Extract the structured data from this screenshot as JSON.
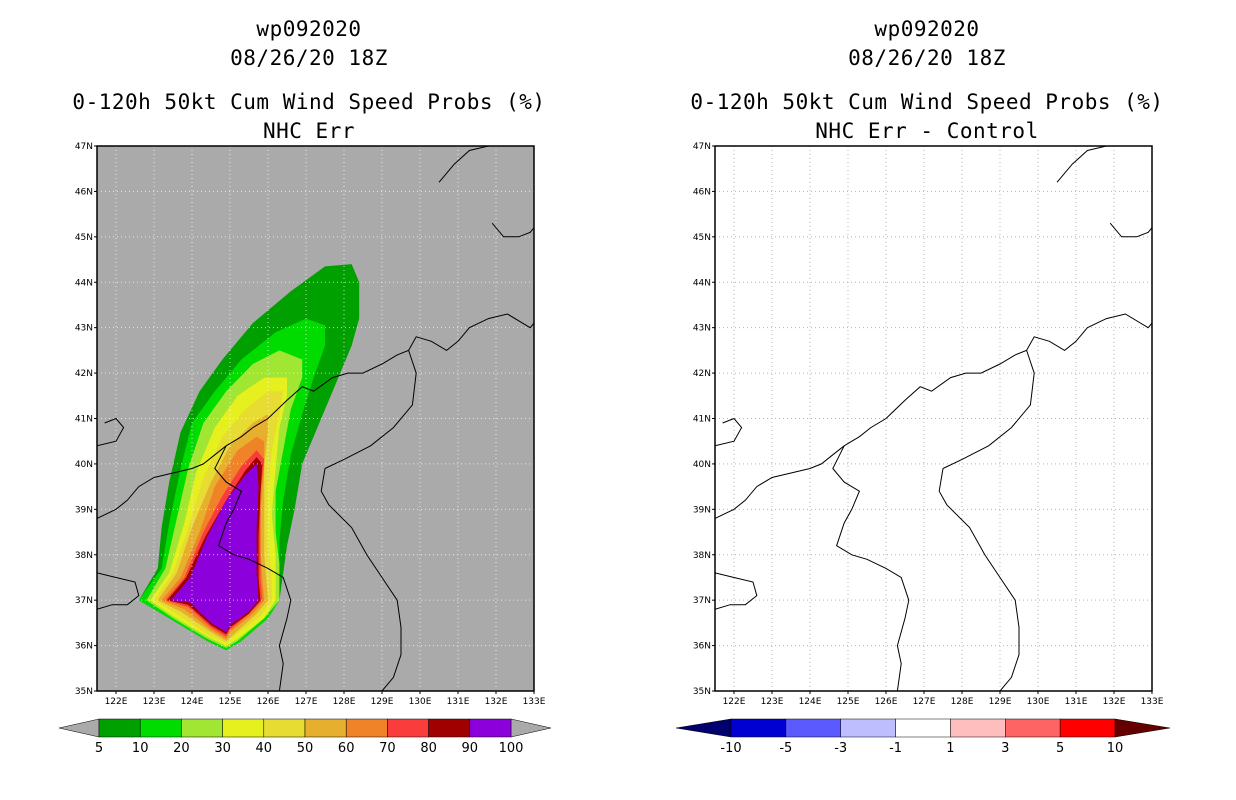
{
  "left_panel": {
    "title_line1": "wp092020",
    "title_line2": "08/26/20 18Z",
    "title_line3": "0-120h 50kt Cum Wind Speed Probs (%)",
    "title_line4": "NHC Err",
    "background_color": "#aaaaaa",
    "colorbar": {
      "labels": [
        "5",
        "10",
        "20",
        "30",
        "40",
        "50",
        "60",
        "70",
        "80",
        "90",
        "100"
      ],
      "colors": [
        "#00a000",
        "#00dc00",
        "#a0e632",
        "#e6f01e",
        "#e6dc32",
        "#e6af2d",
        "#f08228",
        "#fa3c3c",
        "#a00000",
        "#8c00dc"
      ],
      "under_color": "#aaaaaa",
      "over_color": "#aaaaaa"
    }
  },
  "right_panel": {
    "title_line1": "wp092020",
    "title_line2": "08/26/20 18Z",
    "title_line3": "0-120h 50kt Cum Wind Speed Probs (%)",
    "title_line4": "NHC Err - Control",
    "background_color": "#ffffff",
    "colorbar": {
      "labels": [
        "-10",
        "-5",
        "-3",
        "-1",
        "1",
        "3",
        "5",
        "10"
      ],
      "colors": [
        "#0000d2",
        "#5a5aff",
        "#bebeff",
        "#ffffff",
        "#ffbebe",
        "#ff6464",
        "#ff0000"
      ],
      "under_color": "#00006e",
      "over_color": "#640000"
    }
  },
  "map_axes": {
    "lon_labels": [
      "122E",
      "123E",
      "124E",
      "125E",
      "126E",
      "127E",
      "128E",
      "129E",
      "130E",
      "131E",
      "132E",
      "133E"
    ],
    "lat_labels": [
      "35N",
      "36N",
      "37N",
      "38N",
      "39N",
      "40N",
      "41N",
      "42N",
      "43N",
      "44N",
      "45N",
      "46N",
      "47N"
    ],
    "lon_range": [
      121.5,
      133
    ],
    "lat_range": [
      35,
      47
    ]
  },
  "probability_contours_deg": [
    {
      "level": "5",
      "color": "#00a000",
      "polygon": [
        [
          122.6,
          37.0
        ],
        [
          123.1,
          37.7
        ],
        [
          123.2,
          38.6
        ],
        [
          123.4,
          39.6
        ],
        [
          123.7,
          40.7
        ],
        [
          124.2,
          41.6
        ],
        [
          124.8,
          42.3
        ],
        [
          125.6,
          43.1
        ],
        [
          126.6,
          43.8
        ],
        [
          127.5,
          44.35
        ],
        [
          128.2,
          44.4
        ],
        [
          128.4,
          44.0
        ],
        [
          128.4,
          43.2
        ],
        [
          128.2,
          42.6
        ],
        [
          127.8,
          41.8
        ],
        [
          127.4,
          41.0
        ],
        [
          126.9,
          40.0
        ],
        [
          126.7,
          39.0
        ],
        [
          126.5,
          38.2
        ],
        [
          126.4,
          37.6
        ],
        [
          126.3,
          37.0
        ],
        [
          126.0,
          36.6
        ],
        [
          125.3,
          36.1
        ],
        [
          124.9,
          35.9
        ],
        [
          124.4,
          36.1
        ],
        [
          123.4,
          36.6
        ]
      ]
    },
    {
      "level": "10",
      "color": "#00dc00",
      "polygon": [
        [
          122.6,
          37.0
        ],
        [
          123.2,
          37.7
        ],
        [
          123.4,
          38.7
        ],
        [
          123.7,
          39.9
        ],
        [
          124.0,
          40.9
        ],
        [
          124.6,
          41.6
        ],
        [
          125.3,
          42.3
        ],
        [
          126.2,
          42.9
        ],
        [
          127.0,
          43.2
        ],
        [
          127.5,
          43.05
        ],
        [
          127.5,
          42.6
        ],
        [
          127.2,
          41.9
        ],
        [
          126.9,
          41.1
        ],
        [
          126.6,
          40.2
        ],
        [
          126.4,
          39.2
        ],
        [
          126.3,
          38.3
        ],
        [
          126.3,
          37.7
        ],
        [
          126.3,
          37.0
        ],
        [
          126.0,
          36.6
        ],
        [
          125.3,
          36.1
        ],
        [
          124.9,
          35.9
        ],
        [
          124.4,
          36.1
        ],
        [
          123.4,
          36.6
        ]
      ]
    },
    {
      "level": "20",
      "color": "#a0e632",
      "polygon": [
        [
          122.8,
          37.0
        ],
        [
          123.3,
          37.7
        ],
        [
          123.6,
          38.8
        ],
        [
          123.9,
          39.9
        ],
        [
          124.3,
          40.9
        ],
        [
          124.9,
          41.6
        ],
        [
          125.6,
          42.2
        ],
        [
          126.3,
          42.5
        ],
        [
          126.9,
          42.3
        ],
        [
          126.9,
          41.9
        ],
        [
          126.6,
          41.2
        ],
        [
          126.4,
          40.3
        ],
        [
          126.2,
          39.4
        ],
        [
          126.2,
          38.5
        ],
        [
          126.3,
          37.8
        ],
        [
          126.3,
          37.0
        ],
        [
          125.9,
          36.6
        ],
        [
          125.2,
          36.1
        ],
        [
          124.9,
          35.95
        ],
        [
          124.4,
          36.15
        ],
        [
          123.5,
          36.6
        ]
      ]
    },
    {
      "level": "30",
      "color": "#e6f01e",
      "polygon": [
        [
          122.9,
          37.0
        ],
        [
          123.4,
          37.6
        ],
        [
          123.8,
          38.7
        ],
        [
          124.1,
          39.8
        ],
        [
          124.6,
          40.8
        ],
        [
          125.2,
          41.5
        ],
        [
          125.9,
          41.9
        ],
        [
          126.5,
          41.9
        ],
        [
          126.5,
          41.5
        ],
        [
          126.3,
          40.8
        ],
        [
          126.2,
          39.9
        ],
        [
          126.1,
          38.9
        ],
        [
          126.2,
          38.0
        ],
        [
          126.2,
          37.0
        ],
        [
          125.9,
          36.6
        ],
        [
          125.2,
          36.15
        ],
        [
          124.9,
          36.0
        ],
        [
          124.4,
          36.2
        ],
        [
          123.5,
          36.65
        ]
      ]
    },
    {
      "level": "40",
      "color": "#e6dc32",
      "polygon": [
        [
          123.0,
          37.0
        ],
        [
          123.5,
          37.6
        ],
        [
          123.9,
          38.6
        ],
        [
          124.3,
          39.7
        ],
        [
          124.8,
          40.6
        ],
        [
          125.4,
          41.2
        ],
        [
          126.0,
          41.6
        ],
        [
          126.4,
          41.6
        ],
        [
          126.3,
          41.1
        ],
        [
          126.1,
          40.3
        ],
        [
          126.0,
          39.4
        ],
        [
          126.0,
          38.4
        ],
        [
          126.1,
          37.4
        ],
        [
          126.1,
          37.0
        ],
        [
          125.8,
          36.65
        ],
        [
          125.1,
          36.2
        ],
        [
          124.9,
          36.05
        ],
        [
          124.4,
          36.25
        ],
        [
          123.6,
          36.7
        ]
      ]
    },
    {
      "level": "50",
      "color": "#e6af2d",
      "polygon": [
        [
          123.1,
          37.0
        ],
        [
          123.6,
          37.6
        ],
        [
          124.0,
          38.6
        ],
        [
          124.5,
          39.6
        ],
        [
          125.0,
          40.4
        ],
        [
          125.6,
          40.9
        ],
        [
          126.0,
          41.1
        ],
        [
          126.0,
          40.7
        ],
        [
          125.9,
          40.0
        ],
        [
          125.9,
          39.0
        ],
        [
          125.9,
          38.0
        ],
        [
          126.0,
          37.0
        ],
        [
          125.7,
          36.7
        ],
        [
          125.1,
          36.25
        ],
        [
          124.9,
          36.1
        ],
        [
          124.5,
          36.3
        ],
        [
          123.7,
          36.75
        ]
      ]
    },
    {
      "level": "60",
      "color": "#f08228",
      "polygon": [
        [
          123.2,
          37.0
        ],
        [
          123.7,
          37.5
        ],
        [
          124.2,
          38.5
        ],
        [
          124.6,
          39.5
        ],
        [
          125.2,
          40.3
        ],
        [
          125.7,
          40.6
        ],
        [
          125.9,
          40.5
        ],
        [
          125.9,
          39.9
        ],
        [
          125.8,
          39.0
        ],
        [
          125.8,
          38.0
        ],
        [
          125.9,
          37.0
        ],
        [
          125.6,
          36.7
        ],
        [
          125.0,
          36.3
        ],
        [
          124.9,
          36.15
        ],
        [
          124.5,
          36.35
        ],
        [
          123.8,
          36.8
        ]
      ]
    },
    {
      "level": "70",
      "color": "#fa3c3c",
      "polygon": [
        [
          123.3,
          37.0
        ],
        [
          123.8,
          37.5
        ],
        [
          124.3,
          38.5
        ],
        [
          124.8,
          39.3
        ],
        [
          125.3,
          39.95
        ],
        [
          125.7,
          40.3
        ],
        [
          125.9,
          40.1
        ],
        [
          125.8,
          39.4
        ],
        [
          125.8,
          38.4
        ],
        [
          125.8,
          37.5
        ],
        [
          125.85,
          37.0
        ],
        [
          125.5,
          36.7
        ],
        [
          125.0,
          36.35
        ],
        [
          124.9,
          36.2
        ],
        [
          124.5,
          36.4
        ],
        [
          123.9,
          36.85
        ]
      ]
    },
    {
      "level": "80",
      "color": "#a00000",
      "polygon": [
        [
          123.35,
          37.0
        ],
        [
          123.85,
          37.5
        ],
        [
          124.35,
          38.4
        ],
        [
          124.9,
          39.2
        ],
        [
          125.4,
          39.85
        ],
        [
          125.7,
          40.15
        ],
        [
          125.85,
          40.0
        ],
        [
          125.8,
          39.3
        ],
        [
          125.75,
          38.4
        ],
        [
          125.75,
          37.5
        ],
        [
          125.8,
          37.0
        ],
        [
          125.5,
          36.7
        ],
        [
          125.0,
          36.4
        ],
        [
          124.9,
          36.25
        ],
        [
          124.5,
          36.45
        ],
        [
          123.9,
          36.9
        ]
      ]
    },
    {
      "level": "90",
      "color": "#8c00dc",
      "polygon": [
        [
          123.45,
          37.0
        ],
        [
          123.95,
          37.5
        ],
        [
          124.4,
          38.4
        ],
        [
          124.9,
          39.2
        ],
        [
          125.4,
          39.75
        ],
        [
          125.7,
          40.0
        ],
        [
          125.75,
          39.5
        ],
        [
          125.7,
          38.6
        ],
        [
          125.7,
          37.6
        ],
        [
          125.75,
          37.0
        ],
        [
          125.5,
          36.75
        ],
        [
          125.0,
          36.45
        ],
        [
          124.9,
          36.3
        ],
        [
          124.5,
          36.5
        ],
        [
          123.95,
          36.95
        ]
      ]
    }
  ],
  "coastlines_deg": [
    [
      [
        121.5,
        37.6
      ],
      [
        122.0,
        37.5
      ],
      [
        122.5,
        37.4
      ],
      [
        122.6,
        37.1
      ],
      [
        122.3,
        36.9
      ],
      [
        121.9,
        36.9
      ],
      [
        121.5,
        36.8
      ]
    ],
    [
      [
        121.5,
        38.8
      ],
      [
        122.0,
        39.0
      ],
      [
        122.3,
        39.2
      ],
      [
        122.6,
        39.5
      ],
      [
        123.0,
        39.7
      ],
      [
        123.5,
        39.8
      ],
      [
        124.0,
        39.9
      ],
      [
        124.3,
        40.0
      ],
      [
        124.6,
        40.2
      ],
      [
        124.9,
        40.4
      ],
      [
        125.3,
        40.6
      ],
      [
        125.6,
        40.8
      ],
      [
        126.0,
        41.0
      ],
      [
        126.5,
        41.4
      ],
      [
        126.9,
        41.7
      ],
      [
        127.2,
        41.6
      ],
      [
        127.7,
        41.9
      ],
      [
        128.1,
        42.0
      ],
      [
        128.5,
        42.0
      ],
      [
        129.0,
        42.2
      ],
      [
        129.4,
        42.4
      ],
      [
        129.7,
        42.5
      ],
      [
        129.9,
        42.8
      ],
      [
        130.3,
        42.7
      ],
      [
        130.7,
        42.5
      ],
      [
        131.0,
        42.7
      ],
      [
        131.3,
        43.0
      ],
      [
        131.8,
        43.2
      ],
      [
        132.3,
        43.3
      ],
      [
        132.9,
        43.0
      ],
      [
        133.0,
        43.1
      ]
    ],
    [
      [
        124.9,
        40.4
      ],
      [
        124.6,
        39.9
      ],
      [
        124.9,
        39.6
      ],
      [
        125.3,
        39.4
      ],
      [
        125.1,
        39.0
      ],
      [
        124.9,
        38.7
      ],
      [
        124.7,
        38.2
      ],
      [
        125.1,
        38.0
      ],
      [
        125.5,
        37.9
      ],
      [
        126.0,
        37.7
      ],
      [
        126.4,
        37.5
      ],
      [
        126.6,
        37.0
      ],
      [
        126.5,
        36.6
      ],
      [
        126.3,
        36.0
      ],
      [
        126.4,
        35.6
      ],
      [
        126.3,
        35.0
      ]
    ],
    [
      [
        127.5,
        39.9
      ],
      [
        127.4,
        39.4
      ],
      [
        127.6,
        39.1
      ],
      [
        128.2,
        38.6
      ],
      [
        128.6,
        38.0
      ],
      [
        129.0,
        37.5
      ],
      [
        129.4,
        37.0
      ],
      [
        129.5,
        36.4
      ],
      [
        129.5,
        35.8
      ],
      [
        129.3,
        35.3
      ],
      [
        129.0,
        35.0
      ]
    ],
    [
      [
        127.5,
        39.9
      ],
      [
        128.0,
        40.1
      ],
      [
        128.7,
        40.4
      ],
      [
        129.3,
        40.8
      ],
      [
        129.8,
        41.3
      ],
      [
        129.9,
        42.0
      ],
      [
        129.7,
        42.5
      ]
    ],
    [
      [
        121.5,
        40.4
      ],
      [
        122.0,
        40.5
      ],
      [
        122.2,
        40.8
      ],
      [
        122.0,
        41.0
      ],
      [
        121.7,
        40.9
      ]
    ],
    [
      [
        130.5,
        46.2
      ],
      [
        130.9,
        46.6
      ],
      [
        131.3,
        46.9
      ],
      [
        131.8,
        47.0
      ]
    ],
    [
      [
        131.9,
        45.3
      ],
      [
        132.2,
        45.0
      ],
      [
        132.6,
        45.0
      ],
      [
        132.9,
        45.1
      ],
      [
        133.0,
        45.2
      ]
    ]
  ]
}
